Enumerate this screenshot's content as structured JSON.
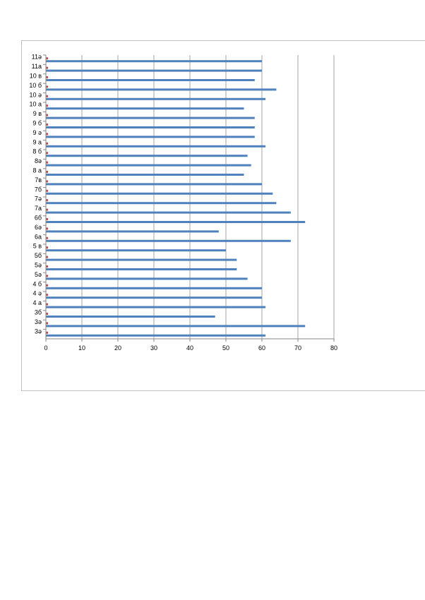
{
  "chart_data": {
    "type": "bar",
    "orientation": "horizontal",
    "title": "",
    "xlabel": "",
    "ylabel": "",
    "xlim": [
      0,
      80
    ],
    "x_ticks": [
      0,
      10,
      20,
      30,
      40,
      50,
      60,
      70,
      80
    ],
    "grid": "vertical",
    "legend": "none",
    "categories": [
      "3ә",
      "3ә",
      "3б",
      "4 а",
      "4 ә",
      "4 б",
      "5ә",
      "5ә",
      "5б",
      "5 в",
      "6а",
      "6ә",
      "6б",
      "7а",
      "7ә",
      "7б",
      "7в",
      "8 а",
      "8ә",
      "8 б",
      "9 а",
      "9 ә",
      "9 б",
      "9 в",
      "10 а",
      "10 ә",
      "10 б",
      "10 в",
      "11а",
      "11ә"
    ],
    "series": [
      {
        "color": "#4f81bd",
        "values": [
          61,
          72,
          47,
          61,
          60,
          60,
          56,
          53,
          53,
          50,
          68,
          48,
          72,
          68,
          64,
          63,
          60,
          55,
          57,
          56,
          61,
          58,
          58,
          58,
          55,
          61,
          64,
          58,
          60,
          60
        ]
      },
      {
        "color": "#c0504d",
        "values": [
          0.6,
          0.6,
          0.6,
          0.6,
          0.6,
          0.6,
          0.6,
          0.6,
          0.6,
          0.6,
          0.6,
          0.6,
          0.6,
          0.6,
          0.6,
          0.6,
          0.6,
          0.6,
          0.6,
          0.6,
          0.6,
          0.6,
          0.6,
          0.6,
          0.6,
          0.6,
          0.6,
          0.6,
          0.6,
          0.6
        ]
      }
    ]
  }
}
